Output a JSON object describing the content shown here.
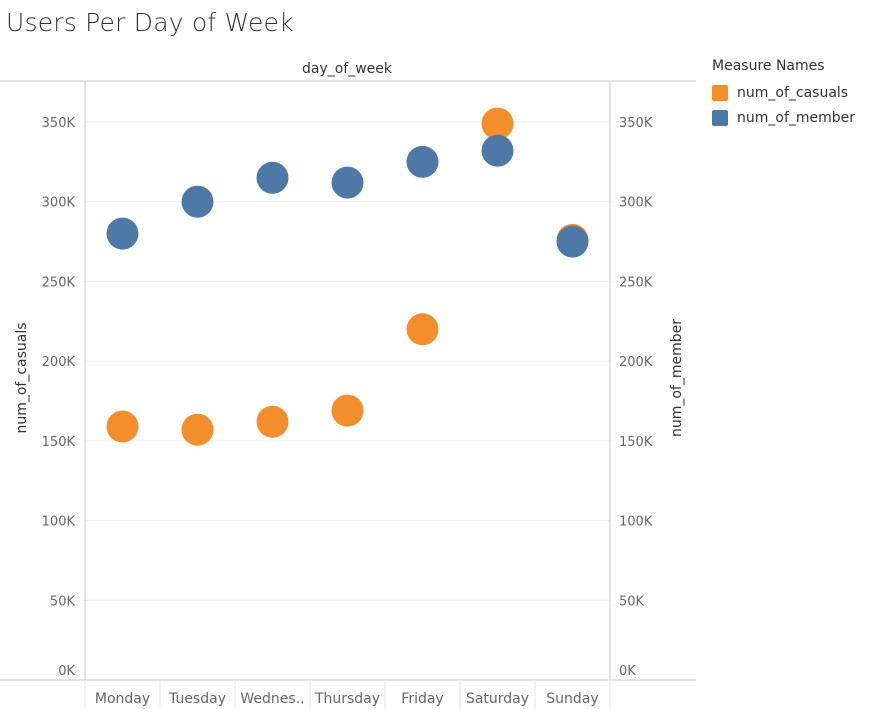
{
  "title": "Users Per Day of Week",
  "legend": {
    "title": "Measure Names",
    "items": [
      {
        "label": "num_of_casuals",
        "color": "#f28e2b"
      },
      {
        "label": "num_of_member",
        "color": "#4e79a7"
      }
    ]
  },
  "chart_data": {
    "type": "scatter",
    "title": "Users Per Day of Week",
    "header": "day_of_week",
    "categories": [
      "Monday",
      "Tuesday",
      "Wednes..",
      "Thursday",
      "Friday",
      "Saturday",
      "Sunday"
    ],
    "ylabel_left": "num_of_casuals",
    "ylabel_right": "num_of_member",
    "ylim": [
      0,
      370000
    ],
    "yticks": [
      0,
      50000,
      100000,
      150000,
      200000,
      250000,
      300000,
      350000
    ],
    "ytick_labels": [
      "0K",
      "50K",
      "100K",
      "150K",
      "200K",
      "250K",
      "300K",
      "350K"
    ],
    "grid": true,
    "legend_position": "top-right",
    "series": [
      {
        "name": "num_of_casuals",
        "color": "#f28e2b",
        "values": [
          159000,
          157000,
          162000,
          169000,
          220000,
          349000,
          276000
        ]
      },
      {
        "name": "num_of_member",
        "color": "#4e79a7",
        "values": [
          280000,
          300000,
          315000,
          312000,
          325000,
          332000,
          275000
        ]
      }
    ]
  }
}
